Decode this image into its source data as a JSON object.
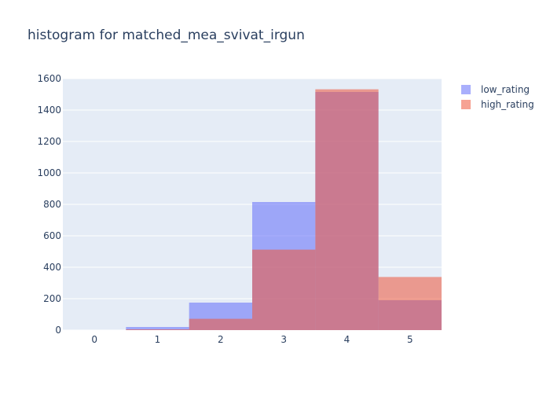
{
  "chart_data": {
    "type": "bar",
    "title": "histogram for matched_mea_svivat_irgun",
    "xlabel": "",
    "ylabel": "",
    "categories": [
      "0",
      "1",
      "2",
      "3",
      "4",
      "5"
    ],
    "x_ticks": [
      "0",
      "1",
      "2",
      "3",
      "4",
      "5"
    ],
    "y_ticks": [
      "0",
      "200",
      "400",
      "600",
      "800",
      "1000",
      "1200",
      "1400",
      "1600"
    ],
    "ylim": [
      0,
      1600
    ],
    "barmode": "overlay",
    "grid": true,
    "legend_position": "top-right",
    "series": [
      {
        "name": "low_rating",
        "color": "#636efa",
        "opacity": 0.55,
        "values": [
          0,
          20,
          175,
          815,
          1515,
          190
        ]
      },
      {
        "name": "high_rating",
        "color": "#ef553b",
        "opacity": 0.55,
        "values": [
          0,
          5,
          72,
          512,
          1532,
          338
        ]
      }
    ],
    "plot_background": "#e5ecf6"
  }
}
